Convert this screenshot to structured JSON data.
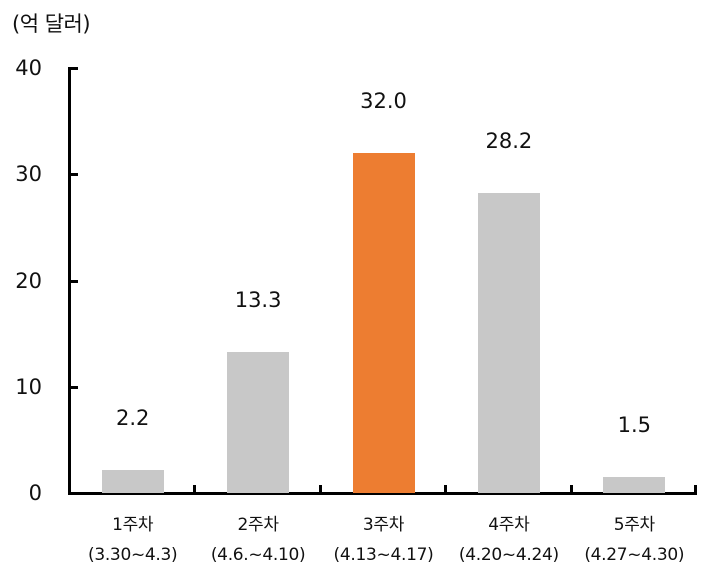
{
  "chart_data": {
    "type": "bar",
    "title": "",
    "unit_label": "(억 달러)",
    "xlabel": "",
    "ylabel": "(억 달러)",
    "ylim": [
      0,
      40
    ],
    "yticks": [
      0,
      10,
      20,
      30,
      40
    ],
    "grid": false,
    "legend": null,
    "categories": [
      "1주차 (3.30~4.3)",
      "2주차 (4.6.~4.10)",
      "3주차 (4.13~4.17)",
      "4주차 (4.20~4.24)",
      "5주차 (4.27~4.30)"
    ],
    "category_week": [
      "1주차",
      "2주차",
      "3주차",
      "4주차",
      "5주차"
    ],
    "category_dates": [
      "(3.30~4.3)",
      "(4.6.~4.10)",
      "(4.13~4.17)",
      "(4.20~4.24)",
      "(4.27~4.30)"
    ],
    "values": [
      2.2,
      13.3,
      32.0,
      28.2,
      1.5
    ],
    "value_labels": [
      "2.2",
      "13.3",
      "32.0",
      "28.2",
      "1.5"
    ],
    "bar_colors": [
      "#C8C8C8",
      "#C8C8C8",
      "#ED7D31",
      "#C8C8C8",
      "#C8C8C8"
    ],
    "highlight_index": 2
  },
  "axis": {
    "unit": "(억 달러)",
    "ytick_labels": [
      "40",
      "30",
      "20",
      "10",
      "0"
    ]
  }
}
